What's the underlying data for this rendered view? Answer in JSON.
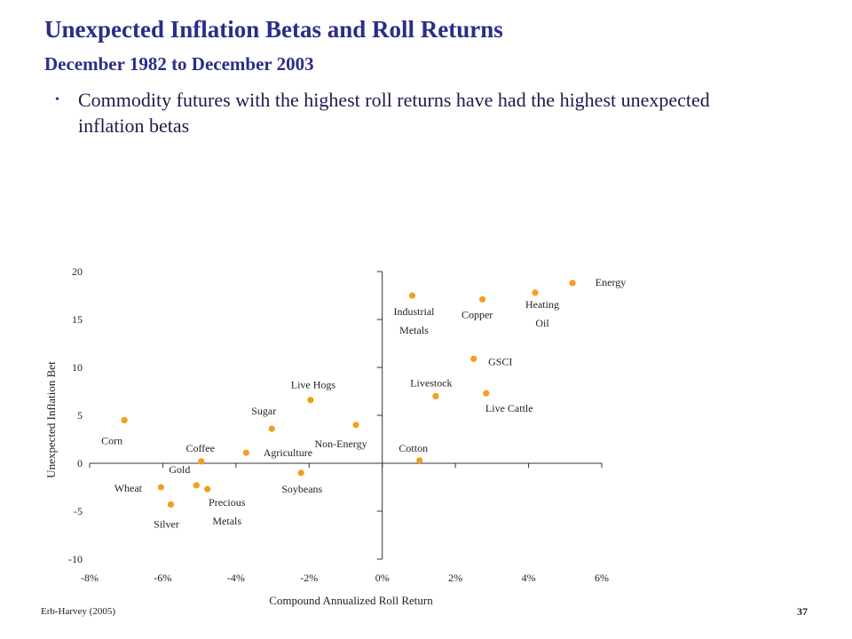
{
  "slide": {
    "title": "Unexpected Inflation Betas and Roll Returns",
    "subtitle": "December 1982 to December 2003",
    "bullet": "Commodity futures with the highest roll returns have had the highest unexpected inflation betas",
    "footer": "Erb-Harvey (2005)",
    "page_number": "37"
  },
  "chart_data": {
    "type": "scatter",
    "title": "",
    "xlabel": "Compound Annualized Roll Return",
    "ylabel": "Unexpected Inflation Bet",
    "xlim": [
      -0.08,
      0.06
    ],
    "ylim": [
      -10,
      20
    ],
    "x_ticks": [
      -0.08,
      -0.06,
      -0.04,
      -0.02,
      0,
      0.02,
      0.04,
      0.06
    ],
    "x_tick_labels": [
      "-8%",
      "-6%",
      "-4%",
      "-2%",
      "0%",
      "2%",
      "4%",
      "6%"
    ],
    "y_ticks": [
      -10,
      -5,
      0,
      5,
      10,
      15,
      20
    ],
    "y_tick_labels": [
      "-10",
      "-5",
      "0",
      "5",
      "10",
      "15",
      "20"
    ],
    "grid": false,
    "legend": "none",
    "marker_color": "#f0a020",
    "points": [
      {
        "label": "Corn",
        "x": -0.0705,
        "y": 4.5
      },
      {
        "label": "Wheat",
        "x": -0.0605,
        "y": -2.5
      },
      {
        "label": "Silver",
        "x": -0.0578,
        "y": -4.3
      },
      {
        "label": "Gold",
        "x": -0.0508,
        "y": -2.3
      },
      {
        "label": "Coffee",
        "x": -0.0495,
        "y": 0.2
      },
      {
        "label": "Precious Metals",
        "x": -0.0478,
        "y": -2.7
      },
      {
        "label": "Agriculture",
        "x": -0.0372,
        "y": 1.1
      },
      {
        "label": "Sugar",
        "x": -0.0302,
        "y": 3.6
      },
      {
        "label": "Soybeans",
        "x": -0.0222,
        "y": -1.0
      },
      {
        "label": "Live Hogs",
        "x": -0.0196,
        "y": 6.6
      },
      {
        "label": "Non-Energy",
        "x": -0.0072,
        "y": 4.0
      },
      {
        "label": "Industrial Metals",
        "x": 0.0082,
        "y": 17.5
      },
      {
        "label": "Cotton",
        "x": 0.0102,
        "y": 0.3
      },
      {
        "label": "Livestock",
        "x": 0.0146,
        "y": 7.0
      },
      {
        "label": "GSCI",
        "x": 0.025,
        "y": 10.9
      },
      {
        "label": "Copper",
        "x": 0.0274,
        "y": 17.1
      },
      {
        "label": "Live Cattle",
        "x": 0.0284,
        "y": 7.3
      },
      {
        "label": "Heating Oil",
        "x": 0.0418,
        "y": 17.8
      },
      {
        "label": "Energy",
        "x": 0.052,
        "y": 18.8
      }
    ]
  }
}
